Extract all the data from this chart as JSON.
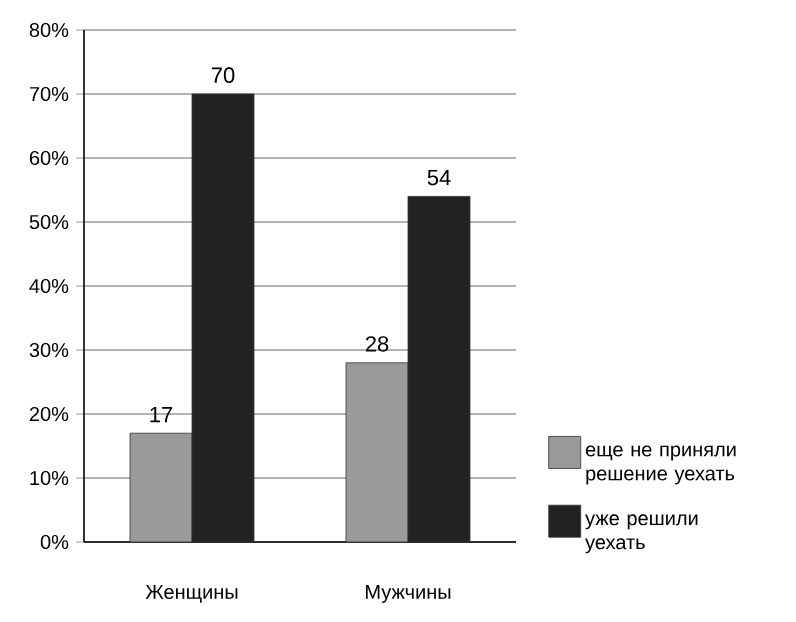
{
  "chart_data": {
    "type": "bar",
    "categories": [
      "Женщины",
      "Мужчины"
    ],
    "series": [
      {
        "name": "еще не приняли решение уехать",
        "color": "#9a9a9a",
        "values": [
          17,
          28
        ]
      },
      {
        "name": "уже решили уехать",
        "color": "#222222",
        "values": [
          70,
          54
        ]
      }
    ],
    "ylim": [
      0,
      80
    ],
    "yticks": [
      {
        "value": 0,
        "label": "0%"
      },
      {
        "value": 10,
        "label": "10%"
      },
      {
        "value": 20,
        "label": "20%"
      },
      {
        "value": 30,
        "label": "30%"
      },
      {
        "value": 40,
        "label": "40%"
      },
      {
        "value": 50,
        "label": "50%"
      },
      {
        "value": 60,
        "label": "60%"
      },
      {
        "value": 70,
        "label": "70%"
      },
      {
        "value": 80,
        "label": "80%"
      }
    ],
    "grid": "y",
    "data_labels": true,
    "legend": "right"
  }
}
